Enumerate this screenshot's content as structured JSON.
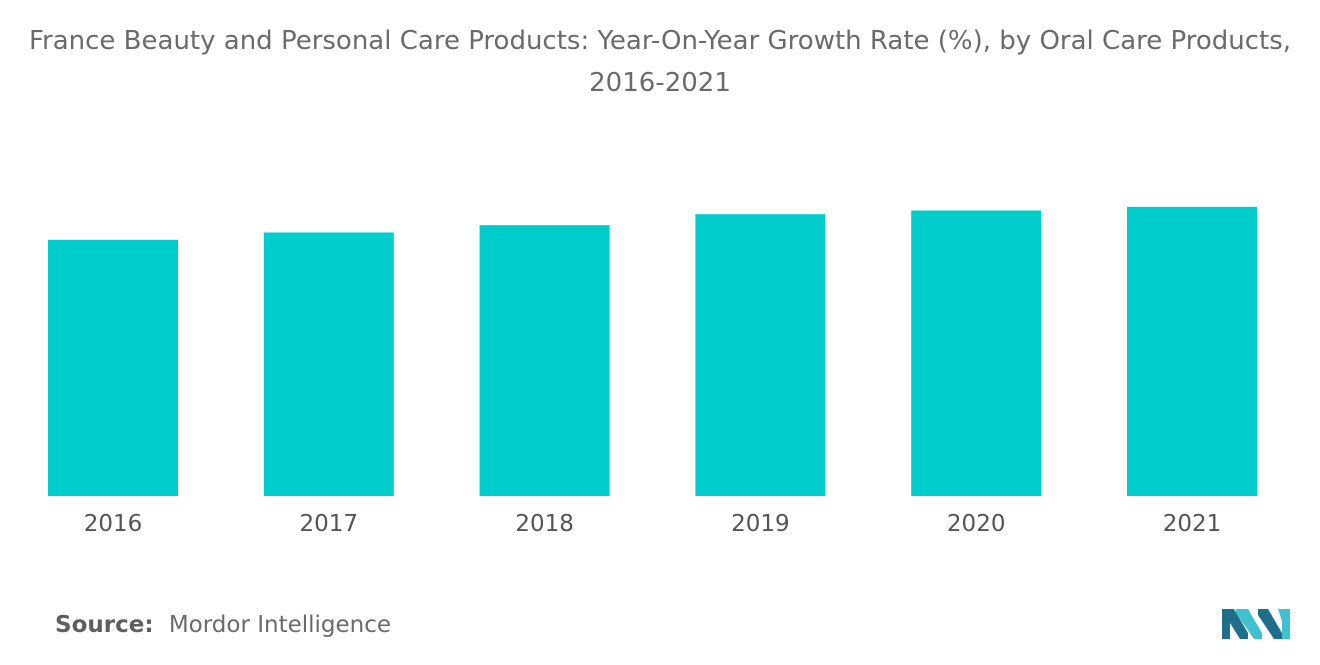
{
  "chart_data": {
    "type": "bar",
    "title": "France Beauty and Personal Care Products: Year-On-Year Growth Rate (%), by Oral Care Products, 2016-2021",
    "categories": [
      "2016",
      "2017",
      "2018",
      "2019",
      "2020",
      "2021"
    ],
    "values": [
      3.5,
      3.6,
      3.7,
      3.85,
      3.9,
      3.95
    ],
    "xlabel": "",
    "ylabel": "",
    "ylim": [
      0,
      5
    ],
    "grid": false,
    "legend": "none",
    "bar_color": "#00CCCC"
  },
  "source": {
    "label": "Source:",
    "text": "Mordor Intelligence"
  },
  "logo": {
    "icon": "mordor-intelligence-logo-icon",
    "color_dark": "#1f6e8c",
    "color_light": "#3fc1cf"
  }
}
